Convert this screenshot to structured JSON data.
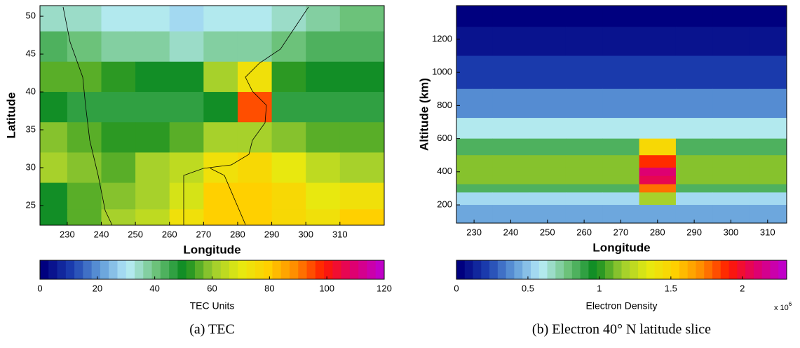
{
  "chart_data": [
    {
      "type": "heatmap",
      "x": [
        225,
        235,
        245,
        255,
        265,
        275,
        285,
        295,
        305,
        315
      ],
      "y": [
        50,
        46,
        42,
        38,
        34,
        30,
        26,
        23
      ],
      "z": [
        [
          35,
          33,
          30,
          30,
          28,
          30,
          32,
          35,
          38,
          40
        ],
        [
          42,
          40,
          38,
          36,
          35,
          36,
          38,
          40,
          42,
          44
        ],
        [
          55,
          54,
          52,
          50,
          50,
          62,
          72,
          52,
          50,
          50
        ],
        [
          48,
          47,
          46,
          45,
          46,
          50,
          95,
          46,
          45,
          45
        ],
        [
          58,
          55,
          52,
          53,
          56,
          60,
          62,
          58,
          55,
          55
        ],
        [
          62,
          58,
          55,
          60,
          65,
          72,
          75,
          70,
          65,
          62
        ],
        [
          50,
          55,
          58,
          62,
          68,
          78,
          80,
          75,
          70,
          72
        ],
        [
          50,
          55,
          60,
          65,
          72,
          78,
          80,
          76,
          72,
          78
        ]
      ],
      "xlim": [
        222,
        323
      ],
      "ylim": [
        22.4,
        51.4
      ],
      "xticks": [
        230,
        240,
        250,
        260,
        270,
        280,
        290,
        300,
        310
      ],
      "yticks": [
        25,
        30,
        35,
        40,
        45,
        50
      ],
      "xlabel": "Longitude",
      "ylabel": "Latitude",
      "colorbar": {
        "label": "TEC Units",
        "lim": [
          0,
          120
        ],
        "ticks": [
          0,
          20,
          40,
          60,
          80,
          100,
          120
        ]
      },
      "colormap": [
        "#00007f",
        "#1c3fb0",
        "#5f9ad8",
        "#b8ecf8",
        "#6cc27a",
        "#0a8a1f",
        "#9ccc30",
        "#e6ea10",
        "#ffd000",
        "#ff8a00",
        "#ff1a00",
        "#e0006a",
        "#c000c8"
      ],
      "caption": "(a)  TEC"
    },
    {
      "type": "heatmap",
      "x": [
        230,
        240,
        250,
        260,
        270,
        280,
        290,
        300,
        310
      ],
      "y": [
        1350,
        1200,
        1000,
        800,
        650,
        550,
        450,
        400,
        350,
        300,
        250,
        150
      ],
      "z": [
        [
          0.05,
          0.05,
          0.05,
          0.05,
          0.05,
          0.05,
          0.05,
          0.05,
          0.05
        ],
        [
          0.1,
          0.1,
          0.1,
          0.1,
          0.1,
          0.1,
          0.1,
          0.1,
          0.1
        ],
        [
          0.22,
          0.22,
          0.22,
          0.22,
          0.22,
          0.22,
          0.22,
          0.22,
          0.22
        ],
        [
          0.38,
          0.38,
          0.38,
          0.38,
          0.38,
          0.38,
          0.38,
          0.38,
          0.38
        ],
        [
          0.6,
          0.6,
          0.6,
          0.6,
          0.6,
          0.6,
          0.6,
          0.6,
          0.6
        ],
        [
          0.85,
          0.85,
          0.85,
          0.85,
          0.85,
          1.5,
          0.85,
          0.85,
          0.85
        ],
        [
          1.1,
          1.1,
          1.1,
          1.1,
          1.1,
          1.9,
          1.1,
          1.1,
          1.1
        ],
        [
          1.15,
          1.15,
          1.15,
          1.15,
          1.15,
          2.1,
          1.15,
          1.15,
          1.15
        ],
        [
          1.1,
          1.1,
          1.1,
          1.1,
          1.1,
          2.05,
          1.1,
          1.1,
          1.1
        ],
        [
          0.85,
          0.85,
          0.85,
          0.85,
          0.85,
          1.75,
          0.85,
          0.85,
          0.85
        ],
        [
          0.55,
          0.55,
          0.55,
          0.55,
          0.55,
          1.2,
          0.55,
          0.55,
          0.55
        ],
        [
          0.45,
          0.45,
          0.45,
          0.45,
          0.45,
          0.45,
          0.45,
          0.45,
          0.45
        ]
      ],
      "xlim": [
        225.2,
        315.2
      ],
      "ylim": [
        90,
        1403
      ],
      "xticks": [
        230,
        240,
        250,
        260,
        270,
        280,
        290,
        300,
        310
      ],
      "yticks": [
        200,
        400,
        600,
        800,
        1000,
        1200
      ],
      "xlabel": "Longitude",
      "ylabel": "Altitude (km)",
      "colorbar": {
        "label": "Electron Density",
        "lim": [
          0,
          2.31
        ],
        "ticks": [
          0,
          0.5,
          1,
          1.5,
          2
        ],
        "multiplier": "x 10",
        "multiplier_exponent": "6"
      },
      "colormap": [
        "#00007f",
        "#1c3fb0",
        "#5f9ad8",
        "#b8ecf8",
        "#6cc27a",
        "#0a8a1f",
        "#9ccc30",
        "#e6ea10",
        "#ffd000",
        "#ff8a00",
        "#ff1a00",
        "#e0006a",
        "#c000c8"
      ],
      "caption": "(b) Electron 40° N latitude slice"
    }
  ]
}
